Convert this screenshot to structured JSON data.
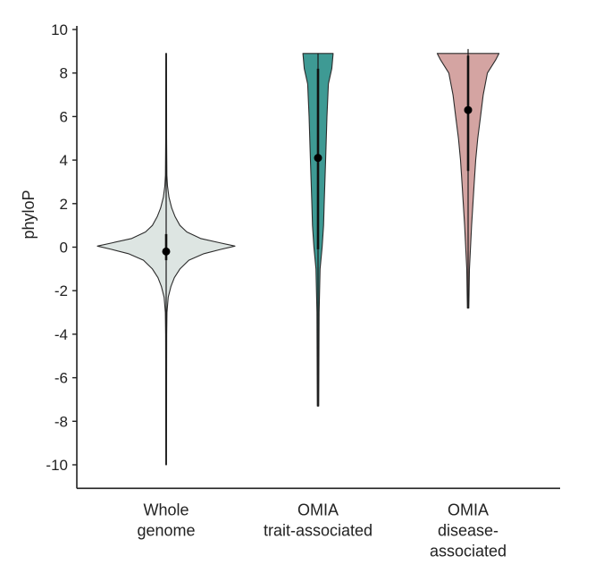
{
  "chart_data": {
    "type": "violin",
    "ylabel": "phyloP",
    "ylim": [
      -11,
      10
    ],
    "y_ticks": [
      10,
      8,
      6,
      4,
      2,
      0,
      -2,
      -4,
      -6,
      -8,
      -10
    ],
    "y_tick_labels": [
      "10",
      "8",
      "6",
      "4",
      "2",
      "0",
      "-2",
      "-4",
      "-6",
      "-8",
      "-10"
    ],
    "grid": false,
    "series": [
      {
        "category_lines": [
          "Whole",
          "genome"
        ],
        "color": "#dde5e2",
        "min": -10,
        "max": 8.9,
        "mean": -0.2,
        "iqr": [
          -0.6,
          0.6
        ],
        "density_profile": [
          [
            -10,
            0.005
          ],
          [
            -6,
            0.006
          ],
          [
            -4,
            0.008
          ],
          [
            -3,
            0.012
          ],
          [
            -2.3,
            0.03
          ],
          [
            -1.8,
            0.07
          ],
          [
            -1.4,
            0.12
          ],
          [
            -1.0,
            0.2
          ],
          [
            -0.6,
            0.33
          ],
          [
            -0.3,
            0.55
          ],
          [
            -0.1,
            0.8
          ],
          [
            0.05,
            1.0
          ],
          [
            0.2,
            0.78
          ],
          [
            0.4,
            0.5
          ],
          [
            0.7,
            0.3
          ],
          [
            1.0,
            0.2
          ],
          [
            1.4,
            0.13
          ],
          [
            1.8,
            0.08
          ],
          [
            2.3,
            0.04
          ],
          [
            2.8,
            0.02
          ],
          [
            3.3,
            0.01
          ],
          [
            5,
            0.006
          ],
          [
            8.9,
            0.005
          ]
        ]
      },
      {
        "category_lines": [
          "OMIA",
          "trait-associated"
        ],
        "color": "#3e9a94",
        "min": -7.3,
        "max": 8.9,
        "mean": 4.1,
        "iqr": [
          -0.1,
          8.2
        ],
        "density_profile": [
          [
            -7.3,
            0.01
          ],
          [
            -3,
            0.015
          ],
          [
            -1,
            0.03
          ],
          [
            0,
            0.06
          ],
          [
            1,
            0.08
          ],
          [
            2,
            0.09
          ],
          [
            4,
            0.11
          ],
          [
            6,
            0.13
          ],
          [
            7.5,
            0.15
          ],
          [
            8.2,
            0.2
          ],
          [
            8.9,
            0.22
          ]
        ]
      },
      {
        "category_lines": [
          "OMIA",
          "disease-",
          "associated"
        ],
        "color": "#d4a4a2",
        "min": -2.8,
        "max": 9.1,
        "mean": 6.3,
        "iqr": [
          3.5,
          8.8
        ],
        "density_profile": [
          [
            -2.8,
            0.01
          ],
          [
            -1,
            0.02
          ],
          [
            1,
            0.05
          ],
          [
            3,
            0.09
          ],
          [
            4,
            0.11
          ],
          [
            5,
            0.14
          ],
          [
            6,
            0.18
          ],
          [
            7,
            0.22
          ],
          [
            8,
            0.28
          ],
          [
            8.6,
            0.4
          ],
          [
            8.9,
            0.45
          ]
        ]
      }
    ]
  }
}
